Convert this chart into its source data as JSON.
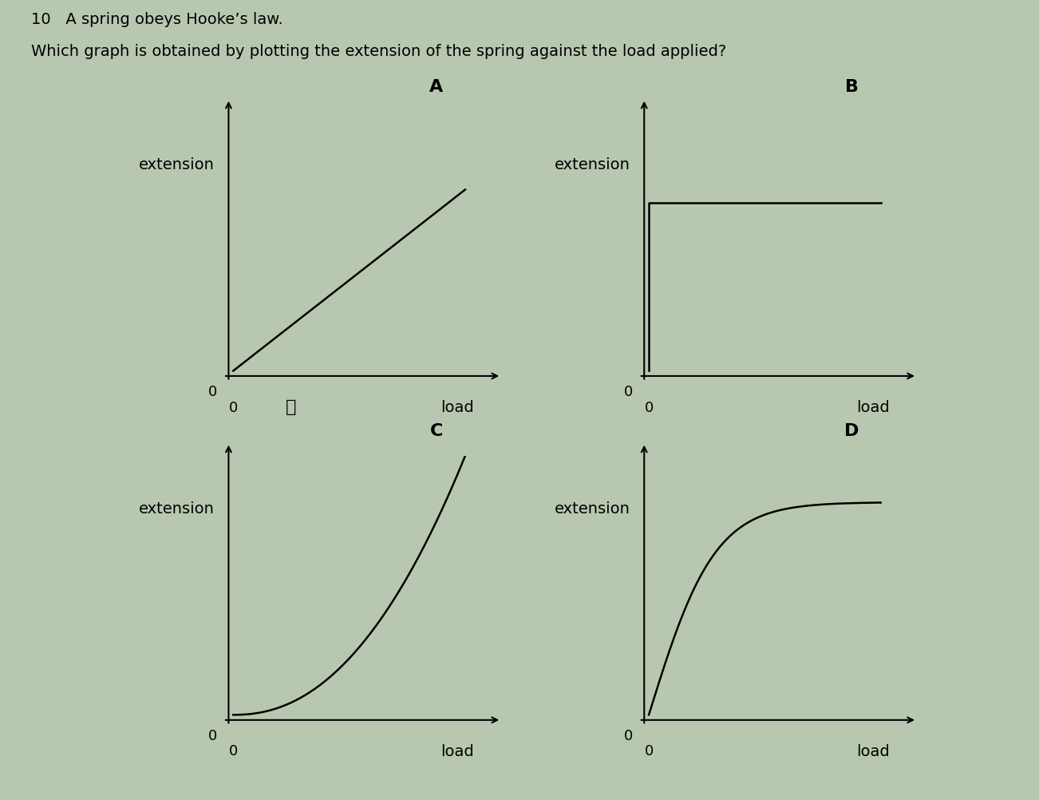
{
  "title_line1": "10   A spring obeys Hooke’s law.",
  "title_line2": "Which graph is obtained by plotting the extension of the spring against the load applied?",
  "background_color": "#b8c8b0",
  "graph_labels": [
    "A",
    "B",
    "C",
    "D"
  ],
  "axis_label_x": "load",
  "axis_label_y": "extension",
  "origin_label": "0",
  "text_color": "#000000",
  "line_color": "#000000",
  "title1_fontsize": 14,
  "title2_fontsize": 14,
  "label_fontsize": 14,
  "axis_text_fontsize": 13
}
